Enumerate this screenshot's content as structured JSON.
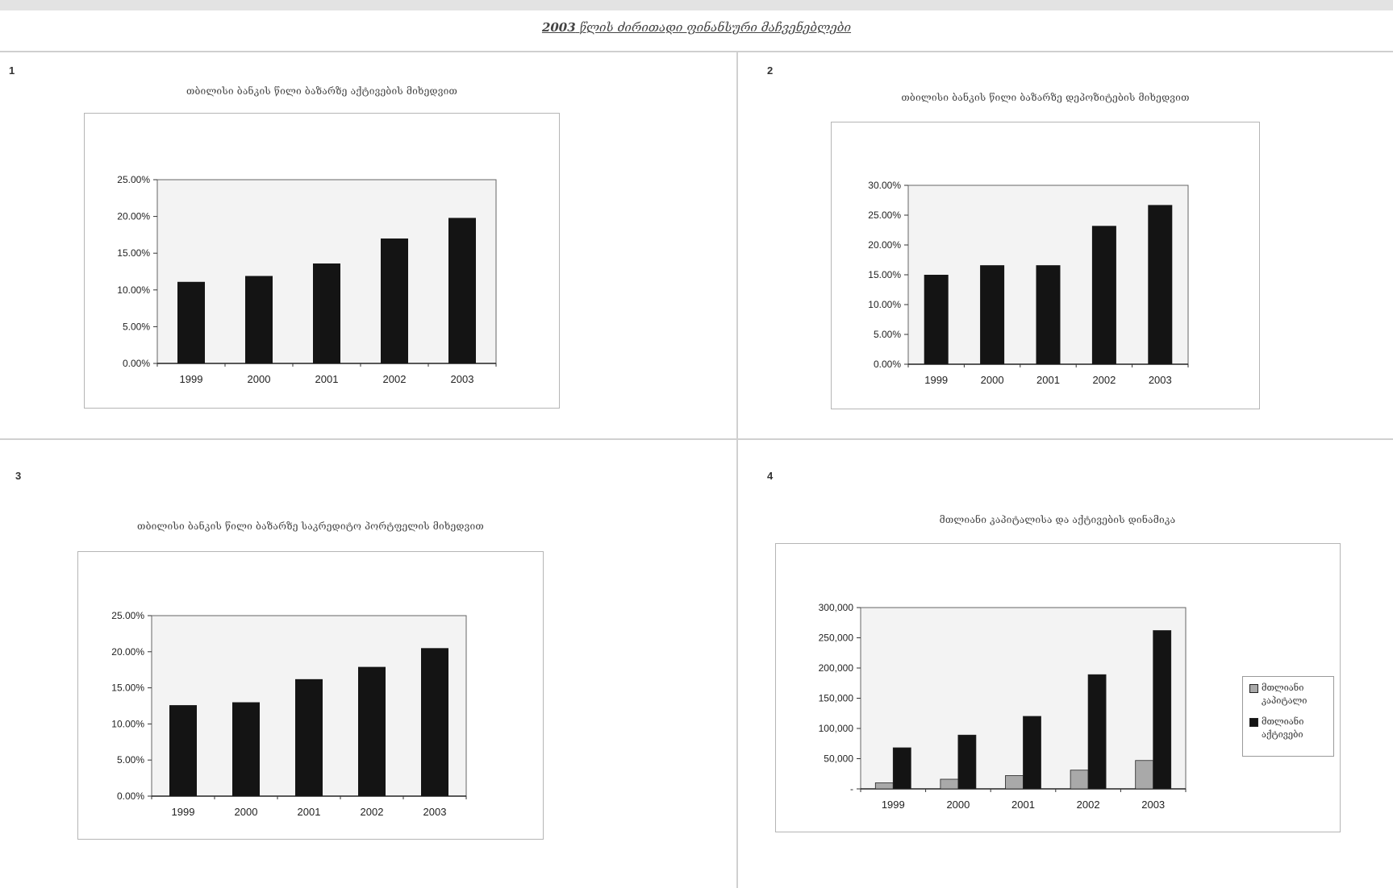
{
  "page": {
    "title_year": "2003",
    "title_text": "წლის ძირითადი ფინანსური მაჩვენებლები"
  },
  "colors": {
    "bar_dark": "#141414",
    "bar_light": "#a9a9a9",
    "plot_bg": "#f3f3f3"
  },
  "charts": [
    {
      "number": "1",
      "title": "თბილისი ბანკის წილი ბაზარზე აქტივების მიხედვით"
    },
    {
      "number": "2",
      "title": "თბილისი ბანკის წილი ბაზარზე დეპოზიტების მიხედვით"
    },
    {
      "number": "3",
      "title": "თბილისი ბანკის წილი ბაზარზე საკრედიტო პორტფელის მიხედვით"
    },
    {
      "number": "4",
      "title": "მთლიანი კაპიტალისა და აქტივების დინამიკა"
    }
  ],
  "chart_data": [
    {
      "type": "bar",
      "categories": [
        "1999",
        "2000",
        "2001",
        "2002",
        "2003"
      ],
      "values": [
        0.111,
        0.119,
        0.136,
        0.17,
        0.198
      ],
      "ylim": [
        0,
        0.25
      ],
      "yticks": [
        0,
        0.05,
        0.1,
        0.15,
        0.2,
        0.25
      ],
      "ytick_labels": [
        "0.00%",
        "5.00%",
        "10.00%",
        "15.00%",
        "20.00%",
        "25.00%"
      ],
      "grid": false
    },
    {
      "type": "bar",
      "categories": [
        "1999",
        "2000",
        "2001",
        "2002",
        "2003"
      ],
      "values": [
        0.15,
        0.166,
        0.166,
        0.232,
        0.267
      ],
      "ylim": [
        0,
        0.3
      ],
      "yticks": [
        0,
        0.05,
        0.1,
        0.15,
        0.2,
        0.25,
        0.3
      ],
      "ytick_labels": [
        "0.00%",
        "5.00%",
        "10.00%",
        "15.00%",
        "20.00%",
        "25.00%",
        "30.00%"
      ],
      "grid": false
    },
    {
      "type": "bar",
      "categories": [
        "1999",
        "2000",
        "2001",
        "2002",
        "2003"
      ],
      "values": [
        0.126,
        0.13,
        0.162,
        0.179,
        0.205
      ],
      "ylim": [
        0,
        0.25
      ],
      "yticks": [
        0,
        0.05,
        0.1,
        0.15,
        0.2,
        0.25
      ],
      "ytick_labels": [
        "0.00%",
        "5.00%",
        "10.00%",
        "15.00%",
        "20.00%",
        "25.00%"
      ],
      "grid": false
    },
    {
      "type": "bar",
      "categories": [
        "1999",
        "2000",
        "2001",
        "2002",
        "2003"
      ],
      "series": [
        {
          "name": "მთლიანი კაპიტალი",
          "values": [
            10000,
            16000,
            22000,
            31000,
            47000
          ]
        },
        {
          "name": "მთლიანი აქტივები",
          "values": [
            68000,
            89000,
            120000,
            189000,
            262000
          ]
        }
      ],
      "ylim": [
        0,
        300000
      ],
      "yticks": [
        0,
        50000,
        100000,
        150000,
        200000,
        250000,
        300000
      ],
      "ytick_labels": [
        "-",
        "50,000",
        "100,000",
        "150,000",
        "200,000",
        "250,000",
        "300,000"
      ],
      "legend_position": "right",
      "grid": false
    }
  ]
}
